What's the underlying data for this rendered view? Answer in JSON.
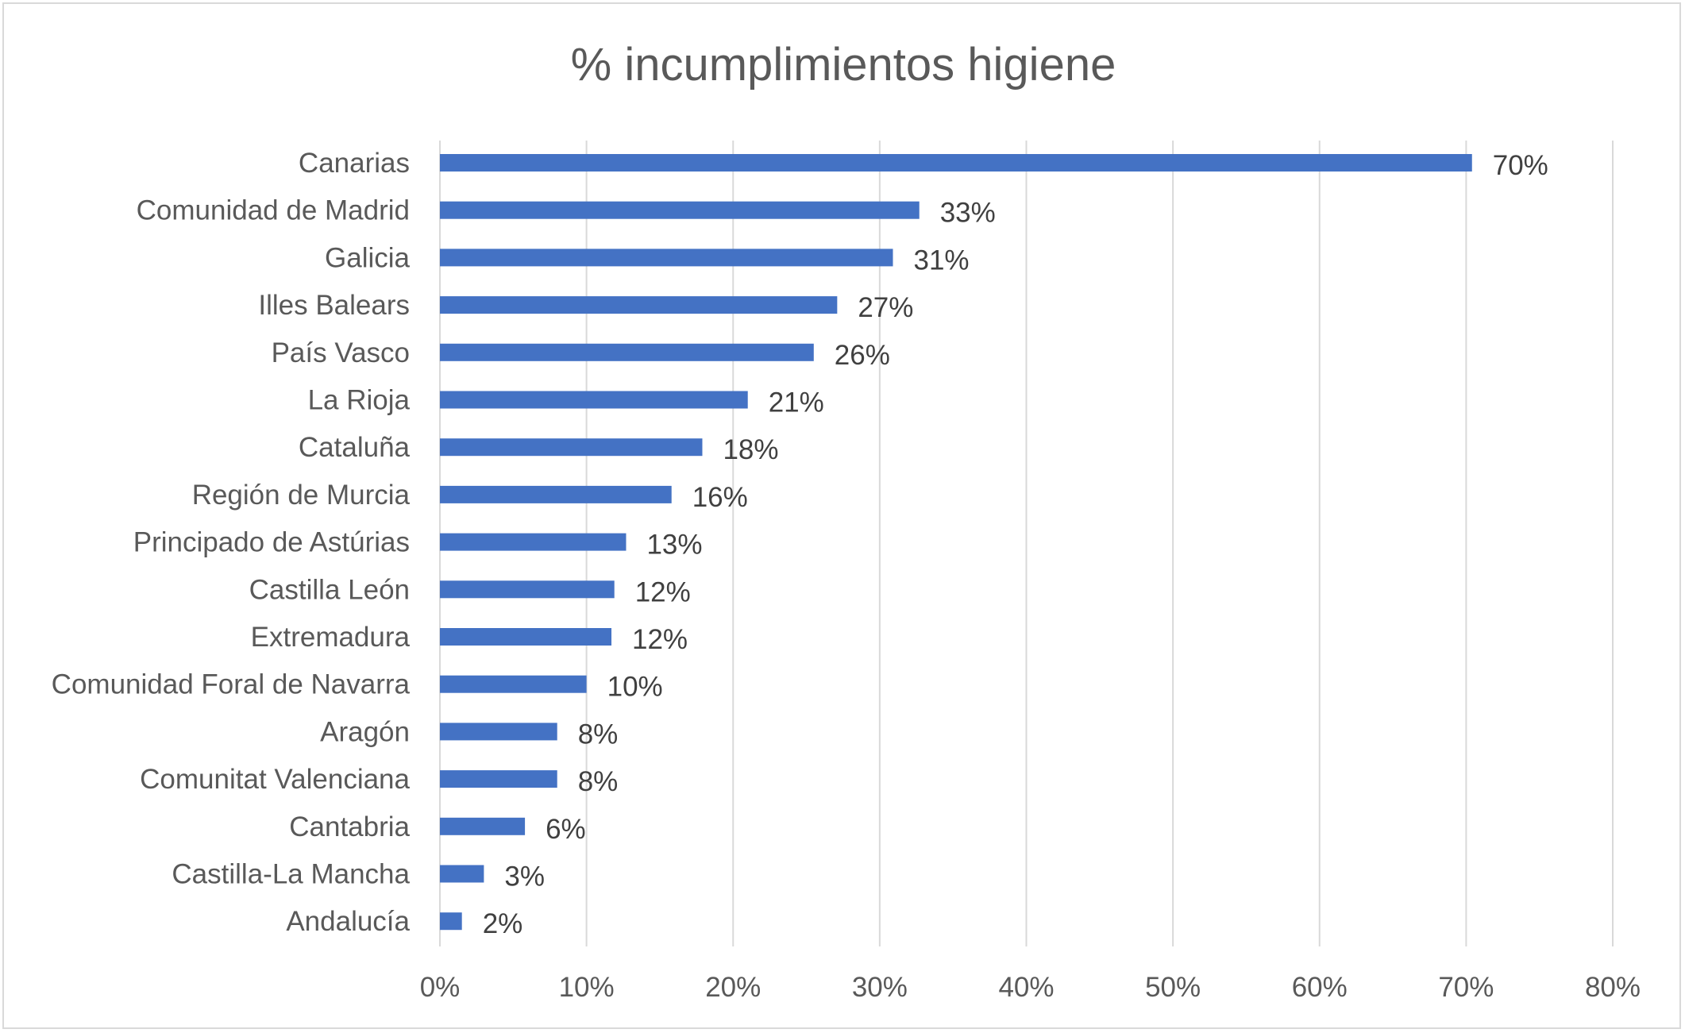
{
  "chart_data": {
    "type": "bar",
    "orientation": "horizontal",
    "title": "% incumplimientos higiene",
    "categories": [
      "Canarias",
      "Comunidad de Madrid",
      "Galicia",
      "Illes Balears",
      "País Vasco",
      "La Rioja",
      "Cataluña",
      "Región de Murcia",
      "Principado de Astúrias",
      "Castilla León",
      "Extremadura",
      "Comunidad Foral de Navarra",
      "Aragón",
      "Comunitat Valenciana",
      "Cantabria",
      "Castilla-La Mancha",
      "Andalucía"
    ],
    "values": [
      70.4,
      32.7,
      30.9,
      27.1,
      25.5,
      21.0,
      17.9,
      15.8,
      12.7,
      11.9,
      11.7,
      10.0,
      8.0,
      8.0,
      5.8,
      3.0,
      1.5
    ],
    "data_labels": [
      "70%",
      "33%",
      "31%",
      "27%",
      "26%",
      "21%",
      "18%",
      "16%",
      "13%",
      "12%",
      "12%",
      "10%",
      "8%",
      "8%",
      "6%",
      "3%",
      "2%"
    ],
    "xlim": [
      0,
      80
    ],
    "x_ticks": [
      "0%",
      "10%",
      "20%",
      "30%",
      "40%",
      "50%",
      "60%",
      "70%",
      "80%"
    ],
    "grid": true,
    "legend": "none",
    "bar_color": "#4472C4"
  }
}
